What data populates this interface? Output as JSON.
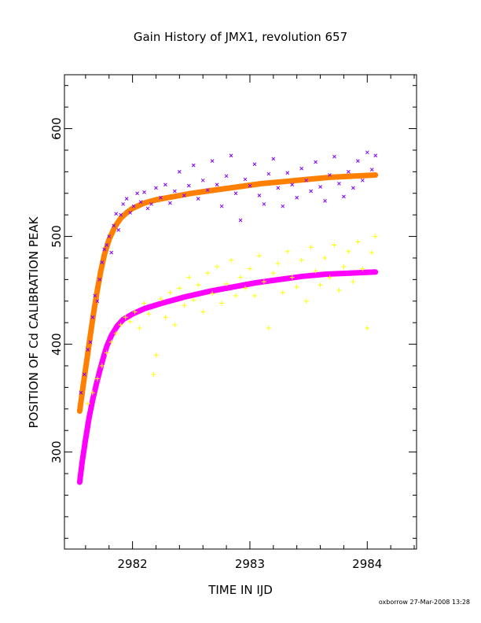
{
  "title": "Gain History of JMX1, revolution 657",
  "footer": "oxborrow 27-Mar-2008 13:28",
  "chart_data": {
    "type": "scatter",
    "title": "Gain History of JMX1, revolution 657",
    "xlabel": "TIME IN IJD",
    "ylabel": "POSITION OF Cd CALIBRATION PEAK",
    "xlim": [
      2981.42,
      2984.42
    ],
    "ylim": [
      210,
      650
    ],
    "x_ticks": [
      2982,
      2983,
      2984
    ],
    "x_tick_labels": [
      "2982",
      "2983",
      "2984"
    ],
    "y_ticks": [
      300,
      400,
      500,
      600
    ],
    "y_tick_labels": [
      "300",
      "400",
      "500",
      "600"
    ],
    "x_minor_step": 0.2,
    "y_minor_step": 20,
    "grid": false,
    "legend": "none",
    "series": [
      {
        "kind": "fit",
        "color": "#ff8000",
        "marker": "+",
        "points": [
          [
            2981.55,
            338
          ],
          [
            2981.58,
            362
          ],
          [
            2981.61,
            385
          ],
          [
            2981.64,
            408
          ],
          [
            2981.67,
            430
          ],
          [
            2981.7,
            450
          ],
          [
            2981.73,
            468
          ],
          [
            2981.76,
            483
          ],
          [
            2981.8,
            497
          ],
          [
            2981.85,
            509
          ],
          [
            2981.9,
            517
          ],
          [
            2981.95,
            522
          ],
          [
            2982.0,
            526
          ],
          [
            2982.1,
            531
          ],
          [
            2982.2,
            534
          ],
          [
            2982.35,
            537
          ],
          [
            2982.5,
            540
          ],
          [
            2982.7,
            543
          ],
          [
            2982.9,
            546
          ],
          [
            2983.1,
            549
          ],
          [
            2983.3,
            551
          ],
          [
            2983.5,
            553
          ],
          [
            2983.7,
            555
          ],
          [
            2983.9,
            556
          ],
          [
            2984.07,
            557
          ]
        ]
      },
      {
        "kind": "fit",
        "color": "#ff00ff",
        "marker": "+",
        "points": [
          [
            2981.55,
            272
          ],
          [
            2981.57,
            290
          ],
          [
            2981.6,
            312
          ],
          [
            2981.63,
            332
          ],
          [
            2981.66,
            348
          ],
          [
            2981.69,
            362
          ],
          [
            2981.72,
            375
          ],
          [
            2981.75,
            387
          ],
          [
            2981.78,
            398
          ],
          [
            2981.82,
            408
          ],
          [
            2981.87,
            417
          ],
          [
            2981.92,
            423
          ],
          [
            2982.0,
            428
          ],
          [
            2982.1,
            433
          ],
          [
            2982.25,
            438
          ],
          [
            2982.45,
            444
          ],
          [
            2982.65,
            449
          ],
          [
            2982.85,
            453
          ],
          [
            2983.05,
            457
          ],
          [
            2983.25,
            460
          ],
          [
            2983.45,
            463
          ],
          [
            2983.65,
            465
          ],
          [
            2983.85,
            466
          ],
          [
            2984.07,
            467
          ]
        ]
      },
      {
        "kind": "measurements",
        "color": "#8000ff",
        "marker": "x",
        "points": [
          [
            2981.56,
            355
          ],
          [
            2981.59,
            372
          ],
          [
            2981.62,
            395
          ],
          [
            2981.64,
            402
          ],
          [
            2981.66,
            425
          ],
          [
            2981.68,
            445
          ],
          [
            2981.7,
            440
          ],
          [
            2981.72,
            460
          ],
          [
            2981.74,
            476
          ],
          [
            2981.76,
            488
          ],
          [
            2981.78,
            492
          ],
          [
            2981.8,
            500
          ],
          [
            2981.82,
            485
          ],
          [
            2981.84,
            510
          ],
          [
            2981.86,
            521
          ],
          [
            2981.88,
            506
          ],
          [
            2981.9,
            520
          ],
          [
            2981.92,
            530
          ],
          [
            2981.95,
            535
          ],
          [
            2981.98,
            522
          ],
          [
            2982.01,
            528
          ],
          [
            2982.04,
            540
          ],
          [
            2982.07,
            532
          ],
          [
            2982.1,
            541
          ],
          [
            2982.13,
            526
          ],
          [
            2982.16,
            530
          ],
          [
            2982.2,
            545
          ],
          [
            2982.24,
            536
          ],
          [
            2982.28,
            548
          ],
          [
            2982.32,
            531
          ],
          [
            2982.36,
            542
          ],
          [
            2982.4,
            560
          ],
          [
            2982.44,
            538
          ],
          [
            2982.48,
            547
          ],
          [
            2982.52,
            566
          ],
          [
            2982.56,
            535
          ],
          [
            2982.6,
            552
          ],
          [
            2982.64,
            543
          ],
          [
            2982.68,
            570
          ],
          [
            2982.72,
            548
          ],
          [
            2982.76,
            528
          ],
          [
            2982.8,
            556
          ],
          [
            2982.84,
            575
          ],
          [
            2982.88,
            540
          ],
          [
            2982.92,
            515
          ],
          [
            2982.96,
            553
          ],
          [
            2983.0,
            547
          ],
          [
            2983.04,
            567
          ],
          [
            2983.08,
            538
          ],
          [
            2983.12,
            530
          ],
          [
            2983.16,
            558
          ],
          [
            2983.2,
            572
          ],
          [
            2983.24,
            545
          ],
          [
            2983.28,
            528
          ],
          [
            2983.32,
            559
          ],
          [
            2983.36,
            548
          ],
          [
            2983.4,
            536
          ],
          [
            2983.44,
            563
          ],
          [
            2983.48,
            552
          ],
          [
            2983.52,
            542
          ],
          [
            2983.56,
            569
          ],
          [
            2983.6,
            546
          ],
          [
            2983.64,
            533
          ],
          [
            2983.68,
            557
          ],
          [
            2983.72,
            574
          ],
          [
            2983.76,
            549
          ],
          [
            2983.8,
            537
          ],
          [
            2983.84,
            560
          ],
          [
            2983.88,
            545
          ],
          [
            2983.92,
            570
          ],
          [
            2983.96,
            552
          ],
          [
            2984.0,
            578
          ],
          [
            2984.04,
            562
          ],
          [
            2984.07,
            575
          ]
        ]
      },
      {
        "kind": "measurements",
        "color": "#ffff00",
        "marker": "+",
        "points": [
          [
            2981.62,
            345
          ],
          [
            2981.66,
            355
          ],
          [
            2981.7,
            368
          ],
          [
            2981.74,
            380
          ],
          [
            2981.78,
            392
          ],
          [
            2981.82,
            402
          ],
          [
            2981.86,
            410
          ],
          [
            2981.9,
            418
          ],
          [
            2981.94,
            425
          ],
          [
            2981.98,
            421
          ],
          [
            2982.02,
            430
          ],
          [
            2982.06,
            415
          ],
          [
            2982.1,
            438
          ],
          [
            2982.14,
            428
          ],
          [
            2982.18,
            372
          ],
          [
            2982.2,
            390
          ],
          [
            2982.24,
            442
          ],
          [
            2982.28,
            425
          ],
          [
            2982.32,
            448
          ],
          [
            2982.36,
            418
          ],
          [
            2982.4,
            452
          ],
          [
            2982.44,
            436
          ],
          [
            2982.48,
            462
          ],
          [
            2982.52,
            441
          ],
          [
            2982.56,
            455
          ],
          [
            2982.6,
            430
          ],
          [
            2982.64,
            466
          ],
          [
            2982.68,
            447
          ],
          [
            2982.72,
            472
          ],
          [
            2982.76,
            438
          ],
          [
            2982.8,
            456
          ],
          [
            2982.84,
            478
          ],
          [
            2982.88,
            445
          ],
          [
            2982.92,
            462
          ],
          [
            2982.96,
            452
          ],
          [
            2983.0,
            470
          ],
          [
            2983.04,
            445
          ],
          [
            2983.08,
            482
          ],
          [
            2983.12,
            458
          ],
          [
            2983.16,
            415
          ],
          [
            2983.2,
            466
          ],
          [
            2983.24,
            475
          ],
          [
            2983.28,
            448
          ],
          [
            2983.32,
            486
          ],
          [
            2983.36,
            462
          ],
          [
            2983.4,
            453
          ],
          [
            2983.44,
            478
          ],
          [
            2983.48,
            440
          ],
          [
            2983.52,
            490
          ],
          [
            2983.56,
            468
          ],
          [
            2983.6,
            455
          ],
          [
            2983.64,
            480
          ],
          [
            2983.68,
            462
          ],
          [
            2983.72,
            492
          ],
          [
            2983.76,
            450
          ],
          [
            2983.8,
            472
          ],
          [
            2983.84,
            486
          ],
          [
            2983.88,
            458
          ],
          [
            2983.92,
            495
          ],
          [
            2983.96,
            470
          ],
          [
            2984.0,
            415
          ],
          [
            2984.04,
            485
          ],
          [
            2984.07,
            500
          ]
        ]
      }
    ]
  }
}
